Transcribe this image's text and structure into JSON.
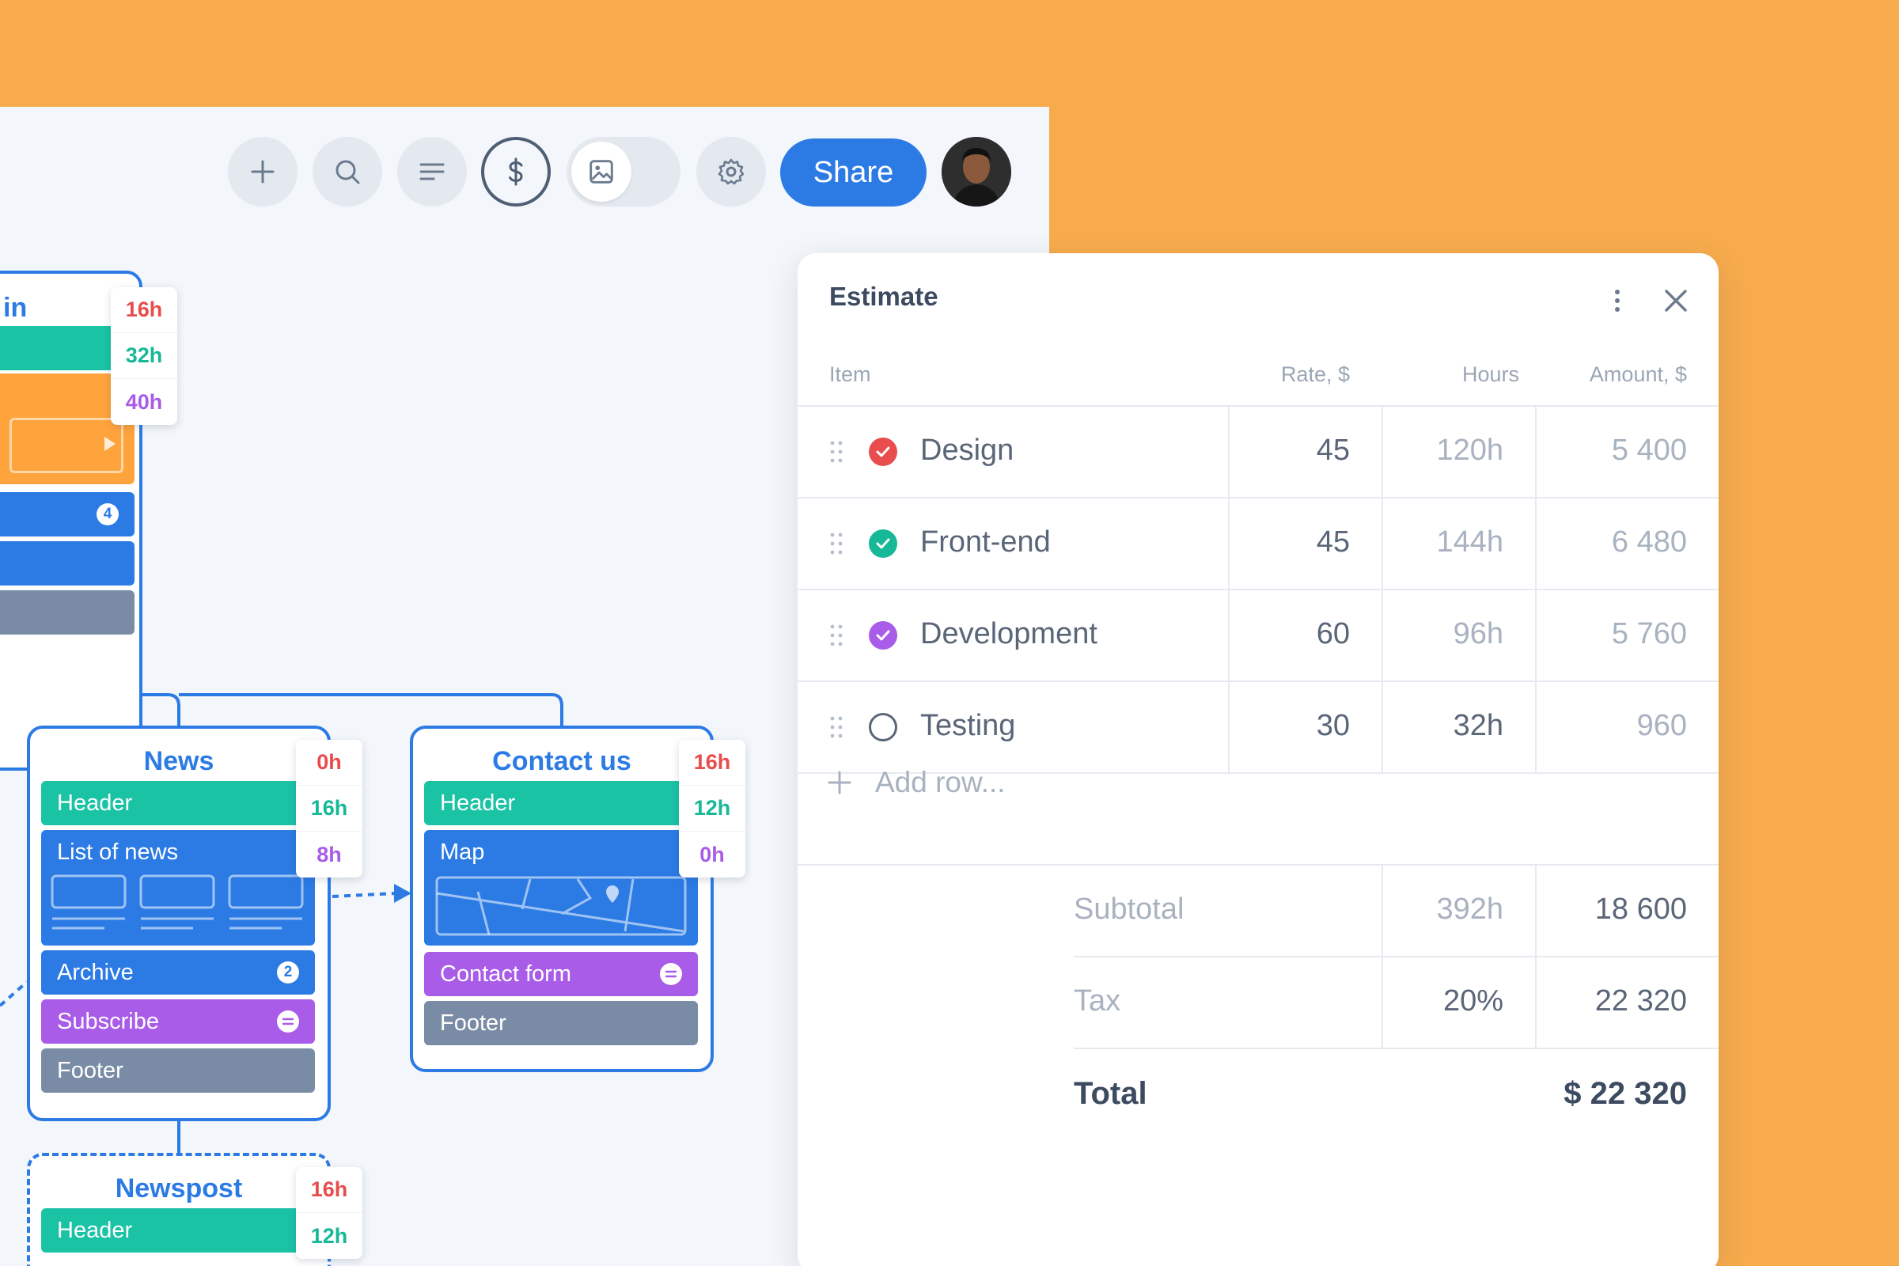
{
  "toolbar": {
    "share_label": "Share",
    "icons": [
      "plus-icon",
      "search-icon",
      "list-icon",
      "dollar-icon",
      "image-icon",
      "gear-icon"
    ]
  },
  "cards": {
    "main": {
      "title": "in",
      "hours": [
        "16h",
        "32h",
        "40h"
      ],
      "blocks": [
        {
          "badge": "4"
        }
      ]
    },
    "news": {
      "title": "News",
      "hours": [
        "0h",
        "16h",
        "8h"
      ],
      "blocks": [
        {
          "label": "Header"
        },
        {
          "label": "List of news"
        },
        {
          "label": "Archive",
          "badge": "2"
        },
        {
          "label": "Subscribe"
        },
        {
          "label": "Footer"
        }
      ]
    },
    "contact": {
      "title": "Contact us",
      "hours": [
        "16h",
        "12h",
        "0h"
      ],
      "blocks": [
        {
          "label": "Header"
        },
        {
          "label": "Map"
        },
        {
          "label": "Contact form"
        },
        {
          "label": "Footer"
        }
      ]
    },
    "newspost": {
      "title": "Newspost",
      "hours": [
        "16h",
        "12h"
      ],
      "blocks": [
        {
          "label": "Header"
        }
      ]
    }
  },
  "estimate": {
    "title": "Estimate",
    "columns": {
      "item": "Item",
      "rate": "Rate, $",
      "hours": "Hours",
      "amount": "Amount, $"
    },
    "rows": [
      {
        "name": "Design",
        "rate": "45",
        "hours": "120h",
        "amount": "5 400",
        "status_color": "#E84C4C",
        "checked": true
      },
      {
        "name": "Front-end",
        "rate": "45",
        "hours": "144h",
        "amount": "6 480",
        "status_color": "#17B897",
        "checked": true
      },
      {
        "name": "Development",
        "rate": "60",
        "hours": "96h",
        "amount": "5 760",
        "status_color": "#A85CE8",
        "checked": true
      },
      {
        "name": "Testing",
        "rate": "30",
        "hours": "32h",
        "amount": "960",
        "status_color": "#5A6678",
        "checked": false
      }
    ],
    "add_row_label": "Add row...",
    "subtotal": {
      "label": "Subtotal",
      "hours": "392h",
      "amount": "18 600"
    },
    "tax": {
      "label": "Tax",
      "rate": "20%",
      "amount": "22 320"
    },
    "total": {
      "label": "Total",
      "amount": "$ 22 320"
    }
  },
  "colors": {
    "background": "#F7AB4C",
    "accent": "#2C7BE5",
    "teal": "#1BC3A5",
    "purple": "#A85CE8",
    "gray": "#7A8CA5",
    "orange": "#FFA43C"
  }
}
